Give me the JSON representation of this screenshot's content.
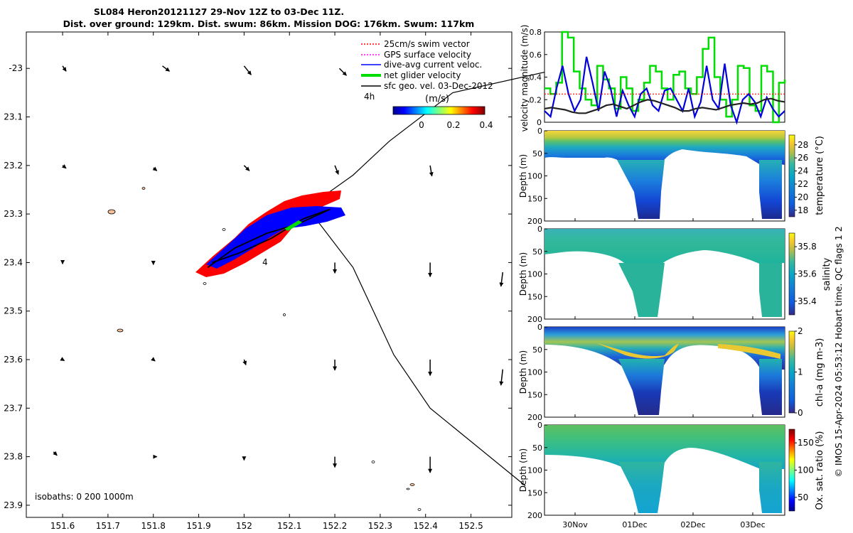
{
  "title": {
    "line1": "SL084 Heron20121127 29-Nov 12Z to 03-Dec 11Z.",
    "line2": "Dist. over ground: 129km. Dist. swum: 86km. Mission DOG: 176km. Swum: 117km"
  },
  "side_label": "© IMOS 15-Apr-2024 05:53:12 Hobart time. QC flags 1  2",
  "chart_data": [
    {
      "type": "scatter",
      "name": "map",
      "xlim": [
        151.52,
        152.59
      ],
      "ylim": [
        -23.925,
        -22.925
      ],
      "xticks": [
        151.6,
        151.7,
        151.8,
        151.9,
        152.0,
        152.1,
        152.2,
        152.3,
        152.4,
        152.5
      ],
      "xtick_labels": [
        "151.6",
        "151.7",
        "151.8",
        "151.9",
        "152",
        "152.1",
        "152.2",
        "152.3",
        "152.4",
        "152.5"
      ],
      "yticks": [
        -23.0,
        -23.1,
        -23.2,
        -23.3,
        -23.4,
        -23.5,
        -23.6,
        -23.7,
        -23.8,
        -23.9
      ],
      "ytick_labels": [
        "-23",
        "23.1",
        "23.2",
        "23.3",
        "23.4",
        "23.5",
        "23.6",
        "23.7",
        "23.8",
        "23.9"
      ],
      "legend": [
        {
          "label": "25cm/s swim vector",
          "color": "#ff0000"
        },
        {
          "label": "GPS surface velocity",
          "color": "#ff00ff"
        },
        {
          "label": "dive-avg current veloc.",
          "color": "#0000ff"
        },
        {
          "label": "net glider velocity",
          "color": "#00dd00"
        },
        {
          "label": "sfc geo. vel. 03-Dec-2012",
          "color": "#000000"
        }
      ],
      "scale_label": "4h",
      "colorbar": {
        "label": "(m/s)",
        "ticks": [
          "0",
          "0.2",
          "0.4"
        ],
        "range": [
          0,
          0.5
        ]
      },
      "isobaths_label": "isobaths: 0   200  1000m",
      "annotation": "4",
      "isobath_line": [
        [
          152.7,
          -23.0
        ],
        [
          152.46,
          -23.05
        ],
        [
          152.32,
          -23.15
        ],
        [
          152.24,
          -23.22
        ],
        [
          152.18,
          -23.26
        ],
        [
          152.15,
          -23.3
        ],
        [
          152.24,
          -23.41
        ],
        [
          152.33,
          -23.59
        ],
        [
          152.41,
          -23.7
        ],
        [
          152.62,
          -23.86
        ]
      ],
      "glider_track": [
        [
          151.92,
          -23.41
        ],
        [
          151.98,
          -23.37
        ],
        [
          152.05,
          -23.34
        ],
        [
          152.12,
          -23.32
        ],
        [
          152.19,
          -23.29
        ],
        [
          152.13,
          -23.31
        ],
        [
          152.06,
          -23.35
        ],
        [
          151.99,
          -23.38
        ],
        [
          151.93,
          -23.4
        ]
      ],
      "current_vectors": [
        [
          151.6,
          -22.995,
          0.01,
          -0.015
        ],
        [
          151.82,
          -22.995,
          0.02,
          -0.015
        ],
        [
          152.0,
          -22.995,
          0.02,
          -0.025
        ],
        [
          152.21,
          -23.0,
          0.02,
          -0.02
        ],
        [
          151.6,
          -23.2,
          0.01,
          -0.008
        ],
        [
          151.8,
          -23.205,
          0.01,
          -0.008
        ],
        [
          152.0,
          -23.2,
          0.015,
          -0.015
        ],
        [
          152.2,
          -23.2,
          0.01,
          -0.025
        ],
        [
          152.41,
          -23.2,
          0.005,
          -0.03
        ],
        [
          151.6,
          -23.4,
          0.0,
          -0.004
        ],
        [
          151.8,
          -23.4,
          0.0,
          -0.006
        ],
        [
          152.2,
          -23.4,
          0.0,
          -0.03
        ],
        [
          152.41,
          -23.4,
          0.0,
          -0.04
        ],
        [
          152.57,
          -23.42,
          -0.005,
          -0.04
        ],
        [
          151.6,
          -23.6,
          0.005,
          -0.003
        ],
        [
          151.8,
          -23.6,
          0.005,
          -0.004
        ],
        [
          152.0,
          -23.6,
          0.005,
          -0.015
        ],
        [
          152.2,
          -23.6,
          0.0,
          -0.03
        ],
        [
          152.41,
          -23.6,
          0.0,
          -0.045
        ],
        [
          152.57,
          -23.62,
          -0.005,
          -0.045
        ],
        [
          151.58,
          -23.79,
          0.01,
          -0.01
        ],
        [
          151.8,
          -23.8,
          0.01,
          0.0
        ],
        [
          152.0,
          -23.8,
          0.0,
          -0.01
        ],
        [
          152.2,
          -23.8,
          0.0,
          -0.03
        ],
        [
          152.41,
          -23.8,
          0.0,
          -0.045
        ]
      ]
    },
    {
      "type": "line",
      "name": "velocity",
      "ylabel": "velocity magnitude (m/s)",
      "ylim": [
        0,
        0.8
      ],
      "yticks": [
        "0",
        "0.2",
        "0.4",
        "0.6",
        "0.8"
      ],
      "series": [
        {
          "color": "#00dd00",
          "values": [
            0.3,
            0.25,
            0.35,
            0.8,
            0.75,
            0.45,
            0.3,
            0.2,
            0.15,
            0.5,
            0.38,
            0.3,
            0.12,
            0.4,
            0.3,
            0.1,
            0.2,
            0.35,
            0.5,
            0.45,
            0.3,
            0.2,
            0.42,
            0.45,
            0.3,
            0.25,
            0.4,
            0.65,
            0.75,
            0.4,
            0.2,
            0.05,
            0.2,
            0.5,
            0.48,
            0.15,
            0.1,
            0.5,
            0.45,
            0.0,
            0.35,
            0.38
          ]
        },
        {
          "color": "#0000dd",
          "values": [
            0.1,
            0.05,
            0.3,
            0.5,
            0.25,
            0.1,
            0.2,
            0.58,
            0.35,
            0.1,
            0.45,
            0.3,
            0.05,
            0.28,
            0.15,
            0.05,
            0.25,
            0.3,
            0.15,
            0.1,
            0.28,
            0.3,
            0.2,
            0.1,
            0.3,
            0.05,
            0.18,
            0.5,
            0.2,
            0.12,
            0.52,
            0.15,
            0.0,
            0.2,
            0.25,
            0.18,
            0.05,
            0.22,
            0.12,
            0.05,
            0.1
          ]
        },
        {
          "color": "#ff0000",
          "values": [
            0.25,
            0.25
          ]
        },
        {
          "color": "#222222",
          "values": [
            0.12,
            0.13,
            0.12,
            0.11,
            0.09,
            0.08,
            0.08,
            0.1,
            0.12,
            0.15,
            0.16,
            0.14,
            0.12,
            0.15,
            0.18,
            0.2,
            0.19,
            0.17,
            0.15,
            0.13,
            0.1,
            0.1,
            0.12,
            0.13,
            0.12,
            0.11,
            0.13,
            0.15,
            0.16,
            0.17,
            0.16,
            0.17,
            0.2,
            0.21,
            0.19,
            0.18
          ]
        }
      ]
    },
    {
      "type": "heatmap",
      "name": "temperature",
      "ylabel": "Depth (m)",
      "cbar_label": "temperature (°C)",
      "ylim": [
        0,
        200
      ],
      "yticks": [
        "0",
        "50",
        "100",
        "150",
        "200"
      ],
      "cbar_ticks": [
        "18",
        "20",
        "22",
        "24",
        "26",
        "28"
      ],
      "cbar_range": [
        17,
        29.5
      ]
    },
    {
      "type": "heatmap",
      "name": "salinity",
      "ylabel": "Depth (m)",
      "cbar_label": "salinity",
      "ylim": [
        0,
        200
      ],
      "yticks": [
        "0",
        "50",
        "100",
        "150",
        "200"
      ],
      "cbar_ticks": [
        "35.4",
        "35.6",
        "35.8"
      ],
      "cbar_range": [
        35.3,
        35.9
      ]
    },
    {
      "type": "heatmap",
      "name": "chla",
      "ylabel": "Depth (m)",
      "cbar_label": "chl-a (mg m-3)",
      "ylim": [
        0,
        200
      ],
      "yticks": [
        "0",
        "50",
        "100",
        "150",
        "200"
      ],
      "cbar_ticks": [
        "0",
        "1",
        "2"
      ],
      "cbar_range": [
        0,
        2
      ]
    },
    {
      "type": "heatmap",
      "name": "oxygen",
      "ylabel": "Depth (m)",
      "cbar_label": "Ox. sat. ratio (%)",
      "ylim": [
        0,
        200
      ],
      "yticks": [
        "0",
        "50",
        "100",
        "150",
        "200"
      ],
      "cbar_ticks": [
        "50",
        "100",
        "150"
      ],
      "cbar_range": [
        25,
        175
      ],
      "xtick_labels": [
        "30Nov",
        "01Dec",
        "02Dec",
        "03Dec"
      ]
    }
  ]
}
